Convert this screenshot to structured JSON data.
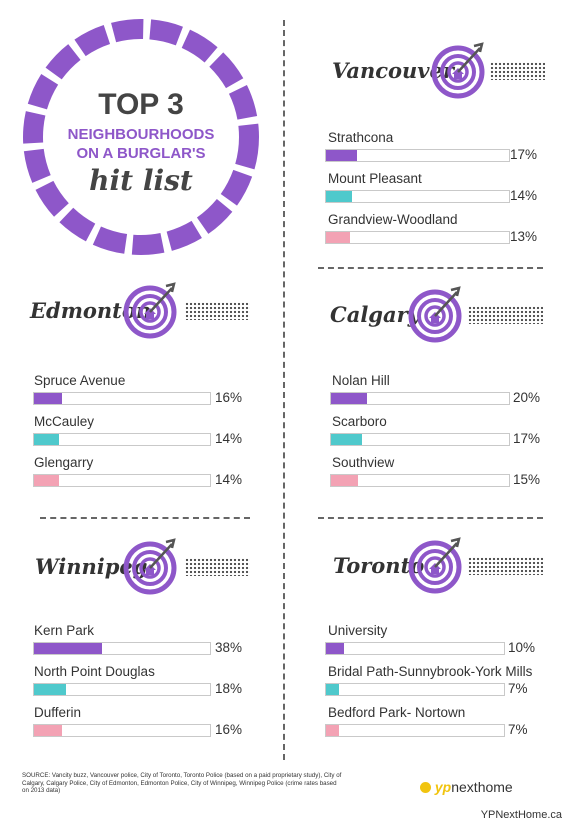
{
  "badge": {
    "line1": "TOP 3",
    "line2": "NEIGHBOURHOODS",
    "line3": "ON A BURGLAR'S",
    "line4": "hit list"
  },
  "colors": {
    "purple": "#8e57c9",
    "teal": "#4fc9cc",
    "pink": "#f3a2b4",
    "badge_ring": "#8e57c9"
  },
  "icons": [
    "target-house-icon"
  ],
  "chart_data": [
    {
      "type": "bar",
      "title": "Vancouver",
      "categories": [
        "Strathcona",
        "Mount Pleasant",
        "Grandview-Woodland"
      ],
      "values": [
        17,
        14,
        13
      ],
      "unit": "%",
      "labels": [
        "17%",
        "14%",
        "13%"
      ]
    },
    {
      "type": "bar",
      "title": "Edmonton",
      "categories": [
        "Spruce Avenue",
        "McCauley",
        "Glengarry"
      ],
      "values": [
        16,
        14,
        14
      ],
      "unit": "%",
      "labels": [
        "16%",
        "14%",
        "14%"
      ]
    },
    {
      "type": "bar",
      "title": "Calgary",
      "categories": [
        "Nolan Hill",
        "Scarboro",
        "Southview"
      ],
      "values": [
        20,
        17,
        15
      ],
      "unit": "%",
      "labels": [
        "20%",
        "17%",
        "15%"
      ]
    },
    {
      "type": "bar",
      "title": "Winnipeg",
      "categories": [
        "Kern Park",
        "North Point Douglas",
        "Dufferin"
      ],
      "values": [
        38,
        18,
        16
      ],
      "unit": "%",
      "labels": [
        "38%",
        "18%",
        "16%"
      ]
    },
    {
      "type": "bar",
      "title": "Toronto",
      "categories": [
        "University",
        "Bridal Path-Sunnybrook-York Mills",
        "Bedford Park- Nortown"
      ],
      "values": [
        10,
        7,
        7
      ],
      "unit": "%",
      "labels": [
        "10%",
        "7%",
        "7%"
      ]
    }
  ],
  "source": "SOURCE: Vancity buzz, Vancouver police, City of Toronto, Toronto Police (based on a paid proprietary study), City of Calgary, Calgary Police, City of Edmonton, Edmonton Police, City of Winnipeg, Winnipeg Police (crime rates based on 2013 data)",
  "brand": {
    "yp": "yp",
    "rest": "nexthome"
  },
  "footer": "YPNextHome.ca"
}
